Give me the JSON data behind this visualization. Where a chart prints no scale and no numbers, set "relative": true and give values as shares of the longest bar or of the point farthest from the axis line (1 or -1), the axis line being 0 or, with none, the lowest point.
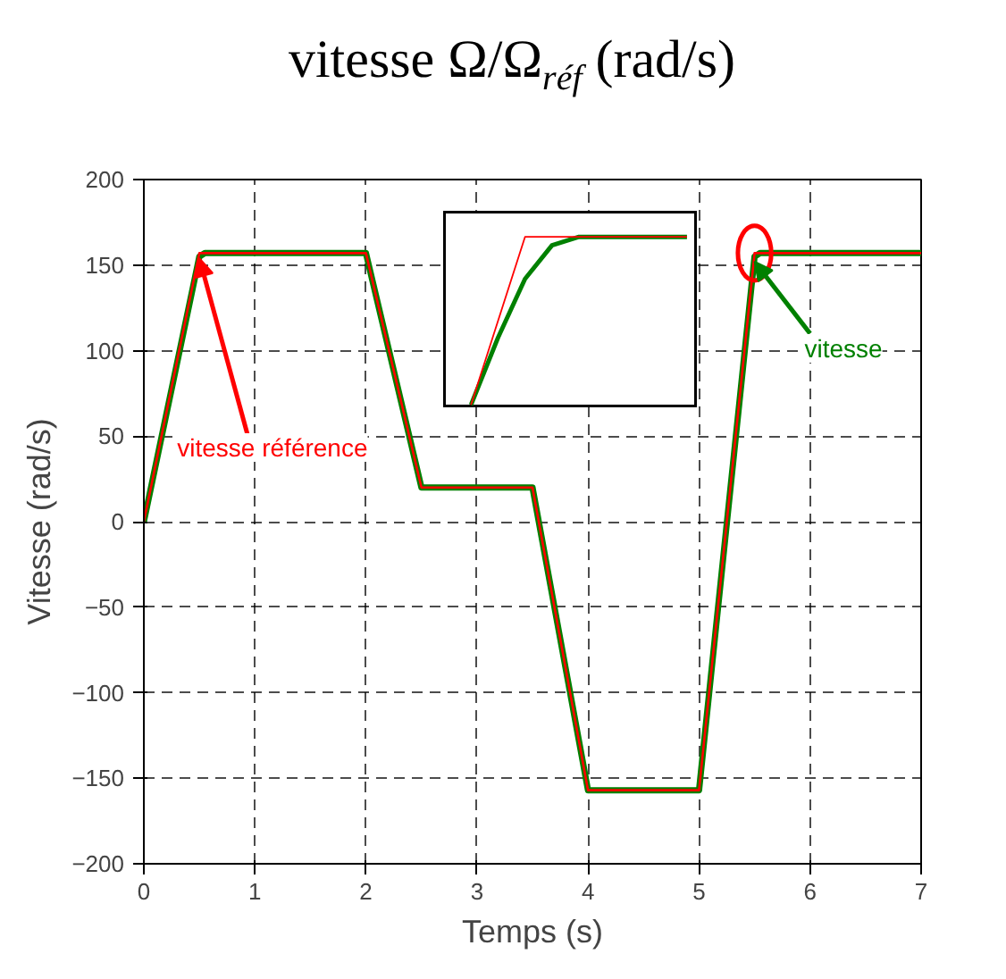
{
  "chart_data": [
    {
      "type": "line",
      "title": "vitesse Ω/Ω$_{réf}$ (rad/s)",
      "xlabel": "Temps (s)",
      "ylabel": "Vitesse (rad/s)",
      "xlim": [
        0,
        7
      ],
      "xticks": [
        0,
        1,
        2,
        3,
        4,
        5,
        6,
        7
      ],
      "ylim": [
        -200,
        200
      ],
      "yticks": [
        -200,
        -150,
        -100,
        -50,
        0,
        50,
        100,
        150,
        200
      ],
      "grid": true,
      "legend": false,
      "series": [
        {
          "name": "vitesse référence",
          "color": "#ff0000",
          "x": [
            0,
            0.5,
            2,
            2.5,
            3.5,
            4,
            5,
            5.5,
            7
          ],
          "values": [
            0,
            157,
            157,
            20,
            20,
            -157,
            -157,
            157,
            157
          ]
        },
        {
          "name": "vitesse",
          "color": "#008000",
          "x": [
            0,
            0.5,
            0.55,
            2,
            2.5,
            3.5,
            4,
            5,
            5.5,
            5.55,
            7
          ],
          "values": [
            0,
            155,
            157,
            157,
            20,
            20,
            -157,
            -157,
            155,
            157,
            157
          ]
        }
      ]
    },
    {
      "type": "line",
      "relative": true,
      "categories": [
        null,
        null,
        null,
        null,
        null,
        null,
        null,
        null,
        null
      ],
      "series": [
        {
          "color": "#ff0000",
          "values": [
            0,
            0.5,
            1,
            1,
            1,
            1,
            1,
            1,
            1
          ]
        },
        {
          "color": "#008000",
          "values": [
            0,
            0.4,
            0.75,
            0.95,
            1,
            1,
            1,
            1,
            1
          ]
        }
      ]
    }
  ]
}
